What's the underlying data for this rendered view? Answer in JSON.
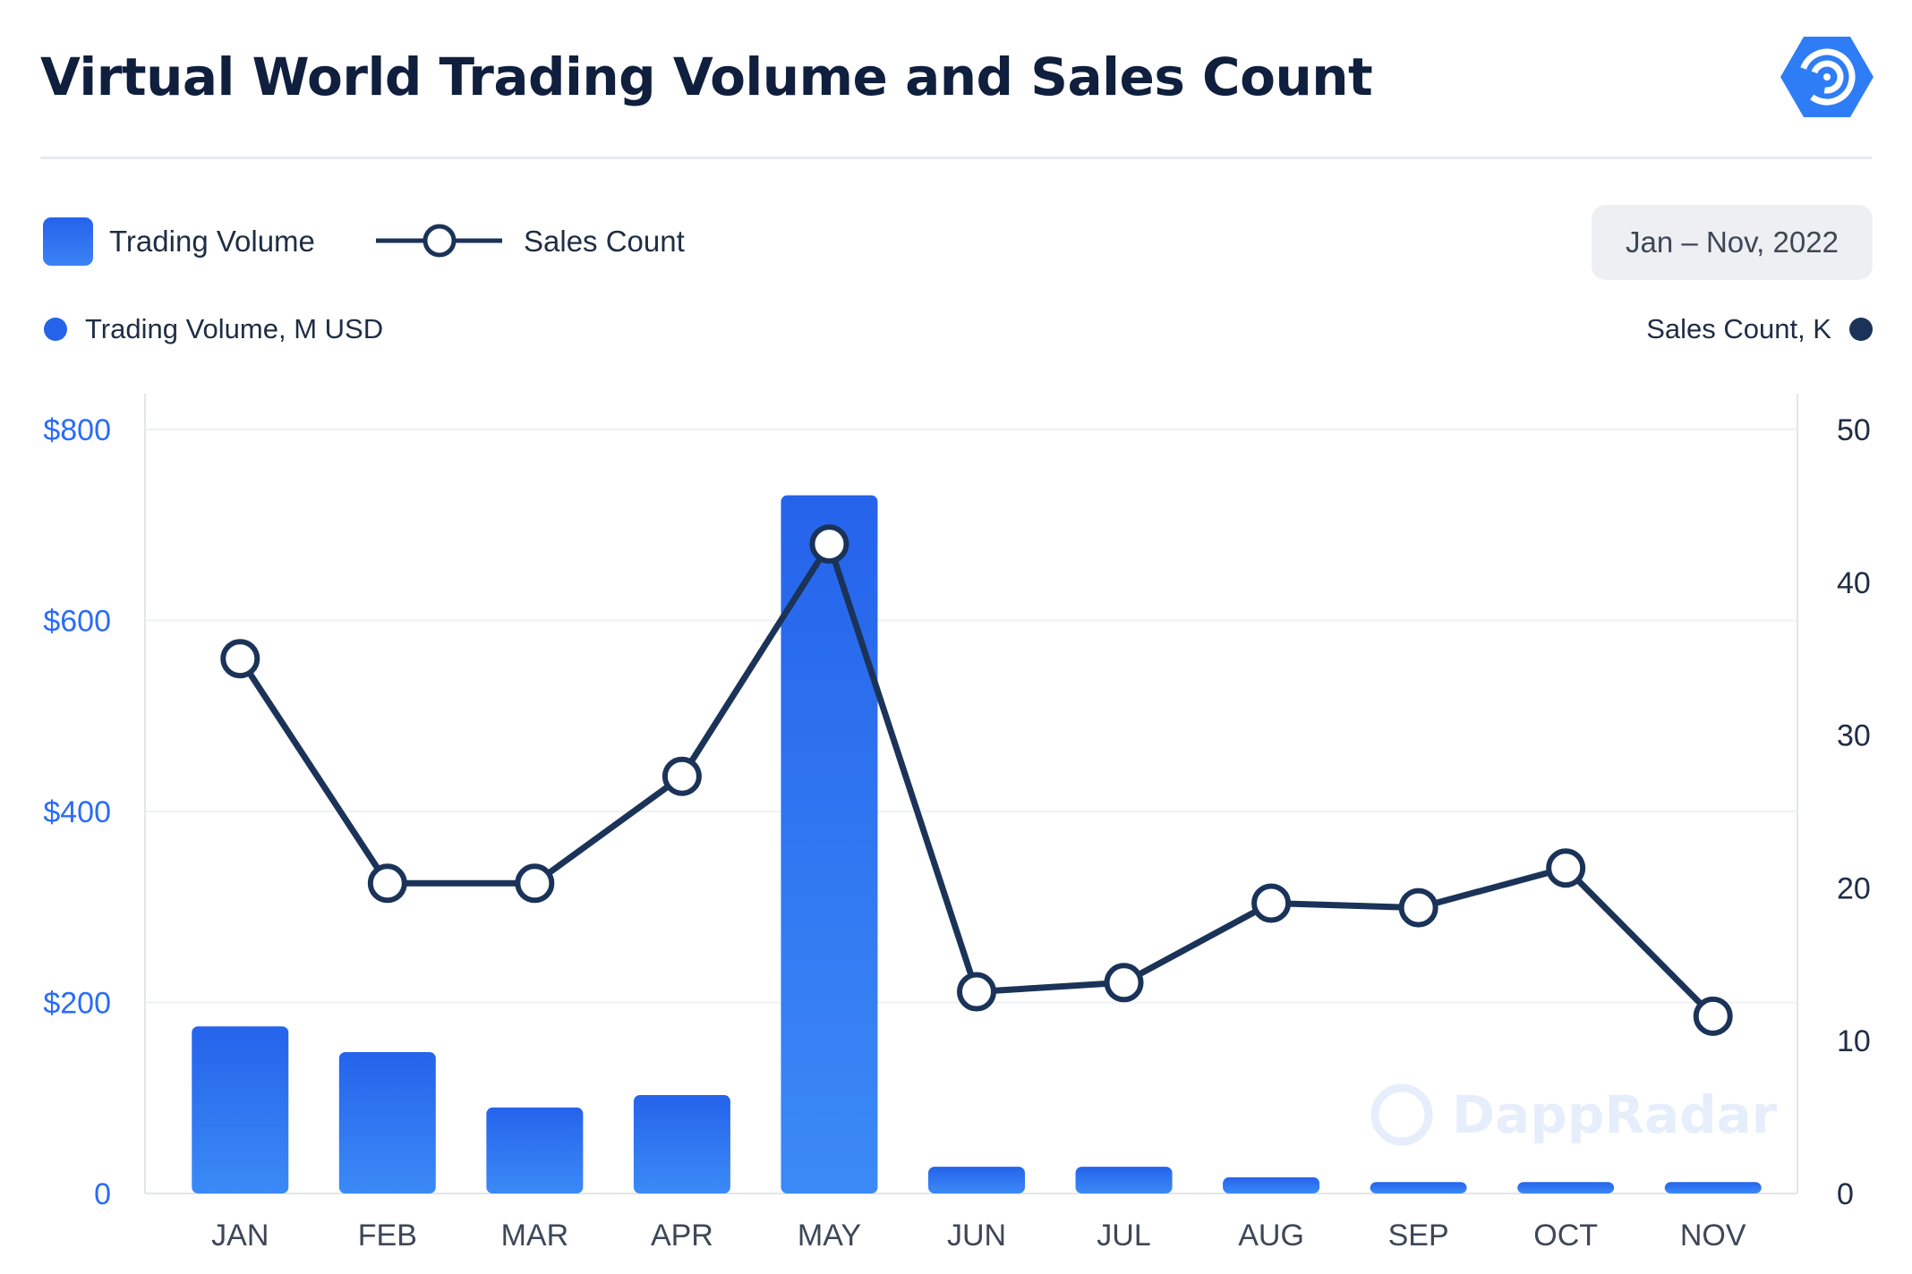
{
  "header": {
    "title": "Virtual World Trading Volume and Sales Count",
    "logo_icon": "dappradar-logo-icon"
  },
  "legend": {
    "volume_label": "Trading Volume",
    "sales_label": "Sales Count",
    "date_range": "Jan – Nov, 2022"
  },
  "axes_labels": {
    "left": "Trading Volume, M USD",
    "right": "Sales Count, K"
  },
  "watermark": "DappRadar",
  "colors": {
    "bar_top": "#2563eb",
    "bar_bottom": "#3b8af6",
    "line": "#1b3358",
    "left_axis_text": "#2b6cf6",
    "right_axis_text": "#1f2d44"
  },
  "chart_data": {
    "type": "bar",
    "categories": [
      "JAN",
      "FEB",
      "MAR",
      "APR",
      "MAY",
      "JUN",
      "JUL",
      "AUG",
      "SEP",
      "OCT",
      "NOV"
    ],
    "series": [
      {
        "name": "Trading Volume",
        "type": "bar",
        "axis": "left",
        "values": [
          175,
          148,
          90,
          103,
          731,
          28,
          28,
          17,
          12,
          12,
          12
        ]
      },
      {
        "name": "Sales Count",
        "type": "line",
        "axis": "right",
        "values": [
          35,
          20.3,
          20.3,
          27.3,
          42.5,
          13.2,
          13.8,
          19,
          18.7,
          21.3,
          11.6
        ]
      }
    ],
    "y_left": {
      "label": "Trading Volume, M USD",
      "range": [
        0,
        800
      ],
      "ticks": [
        "0",
        "$200",
        "$400",
        "$600",
        "$800"
      ],
      "tick_values": [
        0,
        200,
        400,
        600,
        800
      ]
    },
    "y_right": {
      "label": "Sales Count, K",
      "range": [
        0,
        50
      ],
      "ticks": [
        "0",
        "10",
        "20",
        "30",
        "40",
        "50"
      ],
      "tick_values": [
        0,
        10,
        20,
        30,
        40,
        50
      ]
    },
    "grid": true,
    "legend_position": "top-left"
  }
}
